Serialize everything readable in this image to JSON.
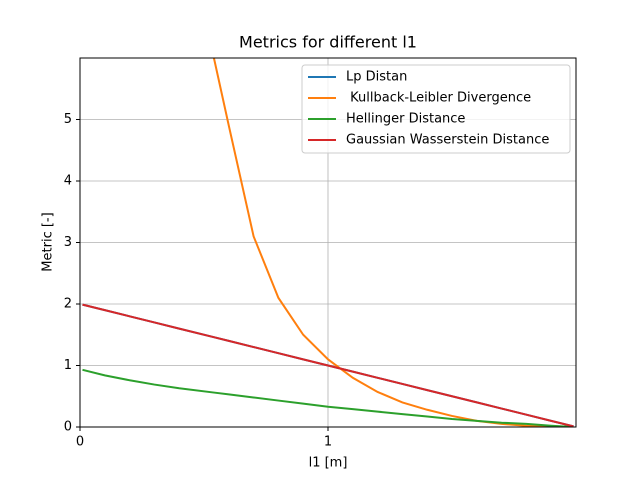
{
  "chart_data": {
    "type": "line",
    "title": "Metrics for different l1",
    "xlabel": "l1 [m]",
    "ylabel": "Metric [-]",
    "x": [
      0.01,
      0.1,
      0.2,
      0.3,
      0.4,
      0.54,
      0.6,
      0.7,
      0.8,
      0.9,
      1.0,
      1.1,
      1.2,
      1.3,
      1.4,
      1.5,
      1.6,
      1.7,
      1.8,
      1.9,
      1.99
    ],
    "series": [
      {
        "name": "Lp Distan",
        "color": "#1f77b4",
        "values": [
          1.99,
          1.9,
          1.8,
          1.7,
          1.6,
          1.46,
          1.4,
          1.3,
          1.2,
          1.1,
          1.0,
          0.9,
          0.8,
          0.7,
          0.6,
          0.5,
          0.4,
          0.3,
          0.2,
          0.1,
          0.01
        ]
      },
      {
        "name": " Kullback-Leibler Divergence",
        "color": "#ff7f0e",
        "values": [
          null,
          null,
          null,
          null,
          null,
          6.0,
          4.9,
          3.1,
          2.1,
          1.5,
          1.1,
          0.8,
          0.57,
          0.4,
          0.28,
          0.18,
          0.1,
          0.05,
          0.02,
          0.005,
          0
        ]
      },
      {
        "name": "Hellinger Distance",
        "color": "#2ca02c",
        "values": [
          0.93,
          0.84,
          0.76,
          0.69,
          0.63,
          0.56,
          0.53,
          0.48,
          0.43,
          0.38,
          0.33,
          0.29,
          0.25,
          0.21,
          0.17,
          0.13,
          0.1,
          0.07,
          0.05,
          0.02,
          0.0
        ]
      },
      {
        "name": "Gaussian Wasserstein Distance",
        "color": "#d62728",
        "values": [
          1.99,
          1.9,
          1.8,
          1.7,
          1.6,
          1.46,
          1.4,
          1.3,
          1.2,
          1.1,
          1.0,
          0.9,
          0.8,
          0.7,
          0.6,
          0.5,
          0.4,
          0.3,
          0.2,
          0.1,
          0.01
        ]
      }
    ],
    "xlim": [
      0,
      2
    ],
    "ylim": [
      0,
      6
    ],
    "xticks": [
      0,
      1
    ],
    "yticks": [
      0,
      1,
      2,
      3,
      4,
      5
    ],
    "grid": true,
    "legend": "upper right"
  }
}
